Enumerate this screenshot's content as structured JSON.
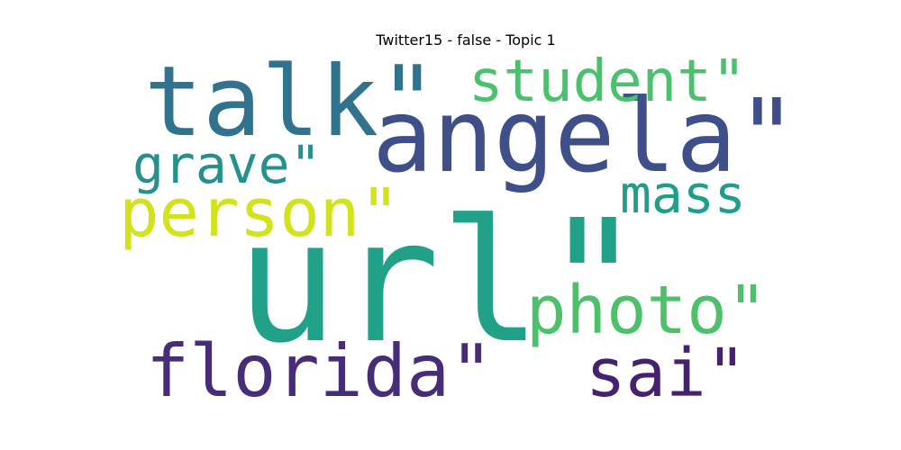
{
  "chart_data": {
    "type": "wordcloud",
    "title": "Twitter15 - false - Topic 1",
    "words": [
      {
        "text": "url\"",
        "weight": 1.0,
        "color": "#21a187"
      },
      {
        "text": "angela\"",
        "weight": 0.6,
        "color": "#3e4f8a"
      },
      {
        "text": "talk\"",
        "weight": 0.58,
        "color": "#31738e"
      },
      {
        "text": "florida\"",
        "weight": 0.44,
        "color": "#472c7a"
      },
      {
        "text": "person\"",
        "weight": 0.4,
        "color": "#d2e21b"
      },
      {
        "text": "photo\"",
        "weight": 0.4,
        "color": "#4cc16a"
      },
      {
        "text": "sai\"",
        "weight": 0.4,
        "color": "#46226e"
      },
      {
        "text": "student\"",
        "weight": 0.34,
        "color": "#4ac16d"
      },
      {
        "text": "grave\"",
        "weight": 0.3,
        "color": "#24918d"
      },
      {
        "text": "mass",
        "weight": 0.28,
        "color": "#1f9e89"
      }
    ]
  }
}
